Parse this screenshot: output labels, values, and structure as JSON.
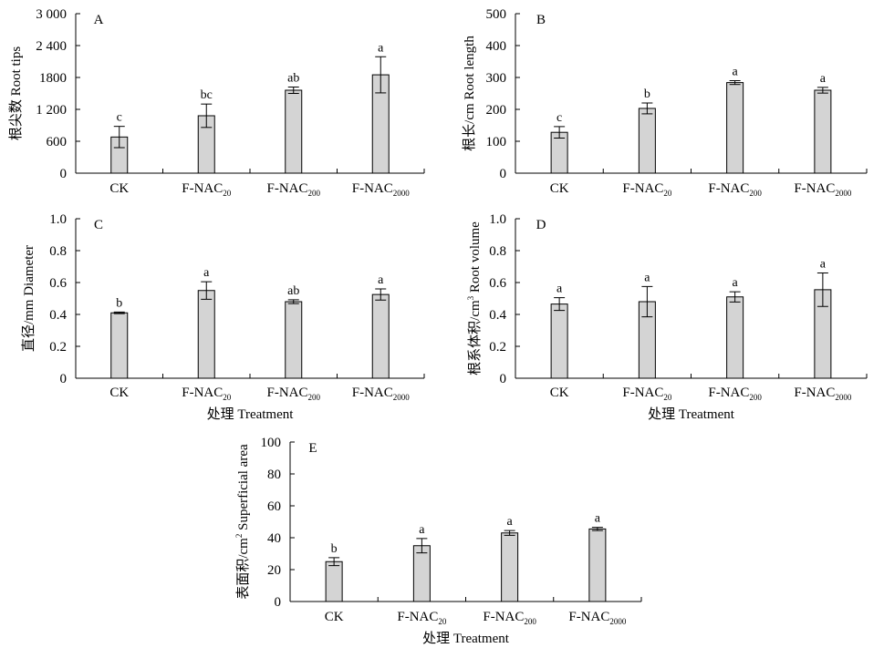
{
  "chart_data": [
    {
      "type": "bar",
      "panel": "A",
      "ylabel": "根尖数 Root tips",
      "xlabel": "",
      "ylim": [
        0,
        3000
      ],
      "yticks": [
        "0",
        "600",
        "1 200",
        "1800",
        "2 400",
        "3 000"
      ],
      "categories": [
        {
          "main": "CK",
          "sub": ""
        },
        {
          "main": "F-NAC",
          "sub": "20"
        },
        {
          "main": "F-NAC",
          "sub": "200"
        },
        {
          "main": "F-NAC",
          "sub": "2000"
        }
      ],
      "values": [
        680,
        1080,
        1560,
        1850
      ],
      "errors": [
        200,
        220,
        60,
        340
      ],
      "letters": [
        "c",
        "bc",
        "ab",
        "a"
      ]
    },
    {
      "type": "bar",
      "panel": "B",
      "ylabel": "根长/cm   Root length",
      "xlabel": "",
      "ylim": [
        0,
        500
      ],
      "yticks": [
        "0",
        "100",
        "200",
        "300",
        "400",
        "500"
      ],
      "categories": [
        {
          "main": "CK",
          "sub": ""
        },
        {
          "main": "F-NAC",
          "sub": "20"
        },
        {
          "main": "F-NAC",
          "sub": "200"
        },
        {
          "main": "F-NAC",
          "sub": "2000"
        }
      ],
      "values": [
        128,
        203,
        284,
        260
      ],
      "errors": [
        18,
        17,
        6,
        9
      ],
      "letters": [
        "c",
        "b",
        "a",
        "a"
      ]
    },
    {
      "type": "bar",
      "panel": "C",
      "ylabel": "直径/mm Diameter",
      "xlabel": "处理 Treatment",
      "ylim": [
        0,
        1.0
      ],
      "yticks": [
        "0",
        "0.2",
        "0.4",
        "0.6",
        "0.8",
        "1.0"
      ],
      "categories": [
        {
          "main": "CK",
          "sub": ""
        },
        {
          "main": "F-NAC",
          "sub": "20"
        },
        {
          "main": "F-NAC",
          "sub": "200"
        },
        {
          "main": "F-NAC",
          "sub": "2000"
        }
      ],
      "values": [
        0.41,
        0.55,
        0.48,
        0.525
      ],
      "errors": [
        0.005,
        0.055,
        0.012,
        0.035
      ],
      "letters": [
        "b",
        "a",
        "ab",
        "a"
      ]
    },
    {
      "type": "bar",
      "panel": "D",
      "ylabel": "根系体积/cm",
      "ylabel_sup": "3",
      "ylabel_tail": "   Root volume",
      "xlabel": "处理 Treatment",
      "ylim": [
        0,
        1.0
      ],
      "yticks": [
        "0",
        "0.2",
        "0.4",
        "0.6",
        "0.8",
        "1.0"
      ],
      "categories": [
        {
          "main": "CK",
          "sub": ""
        },
        {
          "main": "F-NAC",
          "sub": "20"
        },
        {
          "main": "F-NAC",
          "sub": "200"
        },
        {
          "main": "F-NAC",
          "sub": "2000"
        }
      ],
      "values": [
        0.465,
        0.48,
        0.51,
        0.555
      ],
      "errors": [
        0.04,
        0.095,
        0.032,
        0.105
      ],
      "letters": [
        "a",
        "a",
        "a",
        "a"
      ]
    },
    {
      "type": "bar",
      "panel": "E",
      "ylabel": "表面积/cm",
      "ylabel_sup": "2",
      "ylabel_tail": " Superficial area",
      "xlabel": "处理 Treatment",
      "ylim": [
        0,
        100
      ],
      "yticks": [
        "0",
        "20",
        "40",
        "60",
        "80",
        "100"
      ],
      "categories": [
        {
          "main": "CK",
          "sub": ""
        },
        {
          "main": "F-NAC",
          "sub": "20"
        },
        {
          "main": "F-NAC",
          "sub": "200"
        },
        {
          "main": "F-NAC",
          "sub": "2000"
        }
      ],
      "values": [
        25,
        35,
        43,
        45.5
      ],
      "errors": [
        2.5,
        4.5,
        1.5,
        1
      ],
      "letters": [
        "b",
        "a",
        "a",
        "a"
      ]
    }
  ],
  "colors": {
    "bar_fill": "#d4d4d4",
    "bar_stroke": "#000000",
    "axis": "#000000"
  }
}
